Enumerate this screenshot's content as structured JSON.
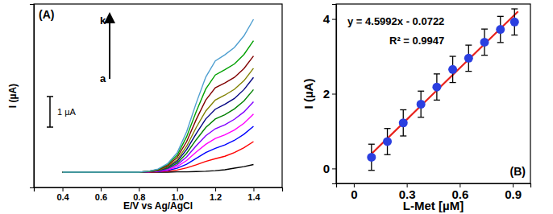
{
  "chart_data": [
    {
      "type": "line",
      "x_label": "E/V vs Ag/AgCl",
      "y_label": "I (µA)",
      "x": [
        0.4,
        0.5,
        0.6,
        0.7,
        0.8,
        0.85,
        0.9,
        0.95,
        1.0,
        1.05,
        1.1,
        1.15,
        1.2,
        1.25,
        1.3,
        1.35,
        1.4
      ],
      "series": [
        {
          "color": "#000000",
          "values": [
            0.5,
            0.5,
            0.5,
            0.5,
            0.5,
            0.5,
            0.5,
            0.5,
            0.51,
            0.51,
            0.52,
            0.53,
            0.55,
            0.58,
            0.63,
            0.68,
            0.75
          ]
        },
        {
          "color": "#ff0000",
          "values": [
            0.5,
            0.5,
            0.5,
            0.5,
            0.5,
            0.5,
            0.51,
            0.53,
            0.57,
            0.64,
            0.74,
            0.85,
            0.94,
            1.02,
            1.14,
            1.3,
            1.5
          ]
        },
        {
          "color": "#0000ff",
          "values": [
            0.5,
            0.5,
            0.5,
            0.5,
            0.5,
            0.51,
            0.52,
            0.56,
            0.63,
            0.76,
            0.95,
            1.14,
            1.28,
            1.39,
            1.54,
            1.74,
            2.0
          ]
        },
        {
          "color": "#ff00ff",
          "values": [
            0.5,
            0.5,
            0.5,
            0.5,
            0.5,
            0.51,
            0.53,
            0.58,
            0.68,
            0.88,
            1.16,
            1.41,
            1.6,
            1.72,
            1.88,
            2.1,
            2.4
          ]
        },
        {
          "color": "#8000ff",
          "values": [
            0.5,
            0.5,
            0.5,
            0.5,
            0.5,
            0.51,
            0.54,
            0.61,
            0.74,
            1.0,
            1.36,
            1.69,
            1.92,
            2.05,
            2.23,
            2.47,
            2.8
          ]
        },
        {
          "color": "#008000",
          "values": [
            0.5,
            0.5,
            0.5,
            0.5,
            0.5,
            0.52,
            0.55,
            0.63,
            0.79,
            1.12,
            1.56,
            1.96,
            2.24,
            2.38,
            2.57,
            2.83,
            3.2
          ]
        },
        {
          "color": "#000080",
          "values": [
            0.5,
            0.5,
            0.5,
            0.5,
            0.5,
            0.52,
            0.55,
            0.66,
            0.85,
            1.24,
            1.76,
            2.24,
            2.56,
            2.72,
            2.91,
            3.2,
            3.6
          ]
        },
        {
          "color": "#808000",
          "values": [
            0.5,
            0.5,
            0.5,
            0.5,
            0.5,
            0.52,
            0.56,
            0.68,
            0.9,
            1.35,
            1.96,
            2.5,
            2.86,
            3.02,
            3.21,
            3.49,
            3.9
          ]
        },
        {
          "color": "#800000",
          "values": [
            0.5,
            0.5,
            0.5,
            0.5,
            0.5,
            0.53,
            0.58,
            0.71,
            0.98,
            1.5,
            2.22,
            2.86,
            3.26,
            3.42,
            3.6,
            3.89,
            4.3
          ]
        },
        {
          "color": "#00a000",
          "values": [
            0.5,
            0.5,
            0.5,
            0.5,
            0.5,
            0.53,
            0.59,
            0.75,
            1.05,
            1.66,
            2.48,
            3.22,
            3.68,
            3.85,
            4.04,
            4.35,
            4.8
          ]
        },
        {
          "color": "#4f9fd0",
          "values": [
            0.5,
            0.5,
            0.5,
            0.5,
            0.5,
            0.53,
            0.6,
            0.78,
            1.13,
            1.82,
            2.76,
            3.61,
            4.14,
            4.34,
            4.58,
            4.96,
            5.5
          ]
        }
      ],
      "xlim": [
        0.25,
        1.55
      ],
      "xticks": [
        0.4,
        0.6,
        0.8,
        {
          "value": 1,
          "label": "1.0"
        },
        1.2,
        1.4
      ],
      "ylim": [
        0,
        6
      ],
      "tick_labels": "x",
      "grid": false,
      "annotations": [
        "(A)",
        "k",
        "a"
      ],
      "scale_bar": {
        "value": 1,
        "label": "1 µA"
      }
    },
    {
      "type": "scatter",
      "x_label": "L-Met [µM]",
      "y_label": "I (µA)",
      "x": [
        0.1,
        0.19,
        0.28,
        0.38,
        0.47,
        0.56,
        0.65,
        0.74,
        0.83,
        0.91
      ],
      "series": [
        {
          "type": "scatter",
          "marker": "circle",
          "color": "#2b3fe0",
          "values": [
            0.3,
            0.72,
            1.22,
            1.72,
            2.18,
            2.65,
            2.95,
            3.38,
            3.72,
            3.92
          ],
          "errors": [
            0.35,
            0.35,
            0.35,
            0.35,
            0.35,
            0.35,
            0.35,
            0.35,
            0.35,
            0.35
          ]
        },
        {
          "type": "line",
          "color": "#e8201a",
          "x": [
            0.08,
            0.93
          ],
          "values": [
            0.3,
            4.2
          ]
        }
      ],
      "xlim": [
        -0.1,
        1.0
      ],
      "xticks": [
        0,
        0.3,
        0.6,
        0.9
      ],
      "ylim": [
        -0.4,
        4.4
      ],
      "yticks": [
        0,
        2,
        4
      ],
      "grid": false,
      "annotations": [
        "(B)",
        "y = 4.5992x - 0.0722",
        "R² = 0.9947"
      ]
    }
  ]
}
